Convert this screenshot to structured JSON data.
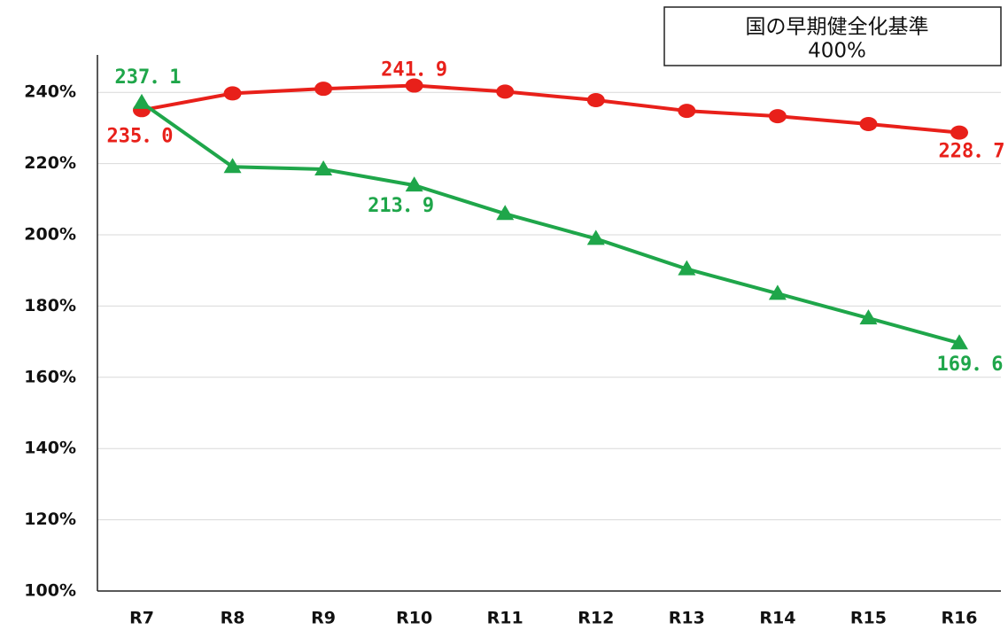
{
  "chart_data": {
    "type": "line",
    "annotation": [
      "国の早期健全化基準",
      "400%"
    ],
    "categories": [
      "R7",
      "R8",
      "R9",
      "R10",
      "R11",
      "R12",
      "R13",
      "R14",
      "R15",
      "R16"
    ],
    "series": [
      {
        "color": "#e8201a",
        "marker": "circle",
        "values": [
          235.0,
          239.7,
          241.0,
          241.9,
          240.2,
          237.8,
          234.8,
          233.3,
          231.1,
          228.7
        ],
        "value_labels": [
          "235．0",
          null,
          null,
          "241．9",
          null,
          null,
          null,
          null,
          null,
          "228．7"
        ]
      },
      {
        "color": "#1fa64a",
        "marker": "triangle",
        "values": [
          237.1,
          219.1,
          218.4,
          213.9,
          205.9,
          198.9,
          190.4,
          183.5,
          176.6,
          169.6
        ],
        "value_labels": [
          "237．1",
          null,
          null,
          "213．9",
          null,
          null,
          null,
          null,
          null,
          "169．6"
        ]
      }
    ],
    "ylim": [
      100,
      250
    ],
    "yticks": [
      {
        "value": 100,
        "label": "100%"
      },
      {
        "value": 120,
        "label": "120%"
      },
      {
        "value": 140,
        "label": "140%"
      },
      {
        "value": 160,
        "label": "160%"
      },
      {
        "value": 180,
        "label": "180%"
      },
      {
        "value": 200,
        "label": "200%"
      },
      {
        "value": 220,
        "label": "220%"
      },
      {
        "value": 240,
        "label": "240%"
      }
    ],
    "grid": true
  }
}
